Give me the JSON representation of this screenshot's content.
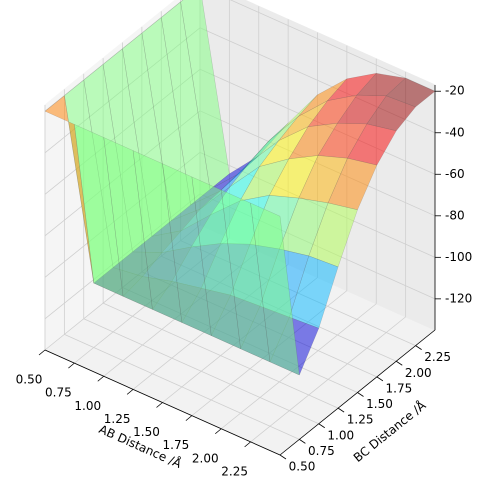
{
  "chart_data": {
    "type": "surface3d",
    "xlabel": "AB Distance /Å",
    "ylabel": "BC Distance /Å",
    "x": [
      0.5,
      0.75,
      1.0,
      1.25,
      1.5,
      1.75,
      2.0,
      2.25,
      2.5
    ],
    "y": [
      0.5,
      0.75,
      1.0,
      1.25,
      1.5,
      1.75,
      2.0,
      2.25,
      2.5
    ],
    "z": [
      [
        -20,
        -20,
        -20,
        -20,
        -20,
        -20,
        -20,
        -20,
        -20
      ],
      [
        -20,
        -104,
        -104,
        -104,
        -104,
        -104,
        -104,
        -104,
        -104
      ],
      [
        -20,
        -104,
        -102,
        -98,
        -95,
        -92,
        -91,
        -90,
        -89
      ],
      [
        -20,
        -104,
        -98,
        -89,
        -81,
        -75,
        -71,
        -68,
        -67
      ],
      [
        -20,
        -104,
        -95,
        -81,
        -68,
        -59,
        -54,
        -50,
        -47
      ],
      [
        -20,
        -104,
        -92,
        -75,
        -59,
        -49,
        -41,
        -36,
        -33
      ],
      [
        -20,
        -104,
        -91,
        -71,
        -54,
        -41,
        -33,
        -27,
        -24
      ],
      [
        -20,
        -104,
        -90,
        -68,
        -50,
        -36,
        -27,
        -21,
        -20
      ],
      [
        -20,
        -104,
        -89,
        -67,
        -47,
        -33,
        -24,
        -20,
        -20
      ]
    ],
    "xlim": [
      0.5,
      2.5
    ],
    "ylim": [
      0.5,
      2.5
    ],
    "zlim": [
      -135,
      -17
    ],
    "xticks": [
      {
        "value": 0.5,
        "label": "0.50"
      },
      {
        "value": 0.75,
        "label": "0.75"
      },
      {
        "value": 1.0,
        "label": "1.00"
      },
      {
        "value": 1.25,
        "label": "1.25"
      },
      {
        "value": 1.5,
        "label": "1.50"
      },
      {
        "value": 1.75,
        "label": "1.75"
      },
      {
        "value": 2.0,
        "label": "2.00"
      },
      {
        "value": 2.25,
        "label": "2.25"
      }
    ],
    "yticks": [
      {
        "value": 0.5,
        "label": "0.50"
      },
      {
        "value": 0.75,
        "label": "0.75"
      },
      {
        "value": 1.0,
        "label": "1.00"
      },
      {
        "value": 1.25,
        "label": "1.25"
      },
      {
        "value": 1.5,
        "label": "1.50"
      },
      {
        "value": 1.75,
        "label": "1.75"
      },
      {
        "value": 2.0,
        "label": "2.00"
      },
      {
        "value": 2.25,
        "label": "2.25"
      }
    ],
    "zticks": [
      -120,
      -100,
      -80,
      -60,
      -40,
      -20
    ],
    "colormap": "jet",
    "grid": true
  }
}
